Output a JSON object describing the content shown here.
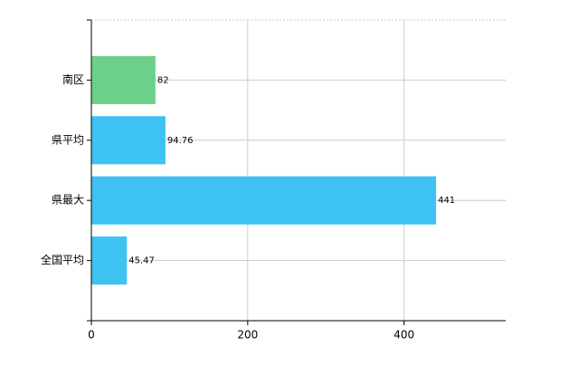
{
  "chart_data": {
    "type": "hbar",
    "categories": [
      "南区",
      "県平均",
      "県最大",
      "全国平均"
    ],
    "series": [
      {
        "values": [
          82,
          94.76,
          441,
          45.47
        ],
        "colors": [
          "#6dd08a",
          "#3dc2f2",
          "#3dc2f2",
          "#3dc2f2"
        ]
      }
    ],
    "xlim": [
      0,
      530
    ],
    "xticks": [
      0,
      200,
      400
    ],
    "grid": true
  }
}
